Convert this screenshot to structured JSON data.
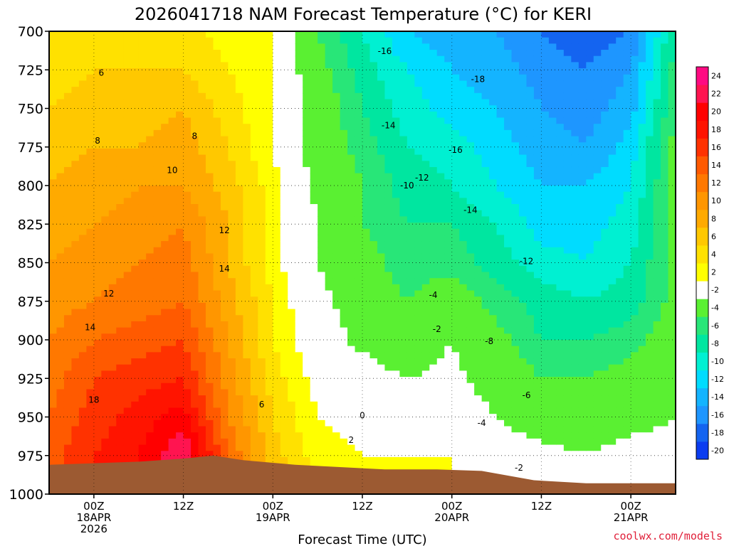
{
  "chart_data": {
    "type": "heatmap",
    "title": "2026041718 NAM Forecast Temperature (°C) for KERI",
    "xlabel": "Forecast Time (UTC)",
    "ylabel": "",
    "credit": "coolwx.com/models",
    "x_ticks": [
      {
        "hour": 6,
        "lines": [
          "00Z",
          "18APR",
          "2026"
        ]
      },
      {
        "hour": 18,
        "lines": [
          "12Z"
        ]
      },
      {
        "hour": 30,
        "lines": [
          "00Z",
          "19APR"
        ]
      },
      {
        "hour": 42,
        "lines": [
          "12Z"
        ]
      },
      {
        "hour": 54,
        "lines": [
          "00Z",
          "20APR"
        ]
      },
      {
        "hour": 66,
        "lines": [
          "12Z"
        ]
      },
      {
        "hour": 78,
        "lines": [
          "00Z",
          "21APR"
        ]
      }
    ],
    "xlim": [
      0,
      84
    ],
    "y_ticks": [
      700,
      725,
      750,
      775,
      800,
      825,
      850,
      875,
      900,
      925,
      950,
      975,
      1000
    ],
    "ylim": [
      1000,
      700
    ],
    "grid": true,
    "colorbar": {
      "placement": "right",
      "bins": [
        {
          "label": "-20",
          "color": "#0a3cf0"
        },
        {
          "label": "-18",
          "color": "#1464f0"
        },
        {
          "label": "-16",
          "color": "#1e96ff"
        },
        {
          "label": "-14",
          "color": "#14b4ff"
        },
        {
          "label": "-12",
          "color": "#00dcff"
        },
        {
          "label": "-10",
          "color": "#00f0d2"
        },
        {
          "label": "-8",
          "color": "#00e6a0"
        },
        {
          "label": "-6",
          "color": "#28e678"
        },
        {
          "label": "-4",
          "color": "#5af032"
        },
        {
          "label": "-2",
          "color": "#ffffff"
        },
        {
          "label": "2",
          "color": "#ffff00"
        },
        {
          "label": "4",
          "color": "#ffe100"
        },
        {
          "label": "6",
          "color": "#ffc800"
        },
        {
          "label": "8",
          "color": "#ffaa00"
        },
        {
          "label": "10",
          "color": "#ff9600"
        },
        {
          "label": "12",
          "color": "#ff7800"
        },
        {
          "label": "14",
          "color": "#ff5a00"
        },
        {
          "label": "16",
          "color": "#ff3200"
        },
        {
          "label": "18",
          "color": "#ff1400"
        },
        {
          "label": "20",
          "color": "#ff0000"
        },
        {
          "label": "22",
          "color": "#ff1450"
        },
        {
          "label": "24",
          "color": "#ff0a82"
        }
      ]
    },
    "terrain_color": "#9c5a32",
    "times": [
      0,
      6,
      12,
      18,
      24,
      30,
      36,
      42,
      48,
      54,
      60,
      66,
      72,
      78,
      84
    ],
    "levels": [
      700,
      725,
      750,
      775,
      800,
      825,
      850,
      875,
      900,
      925,
      950,
      975
    ],
    "temperature_grid": [
      [
        4,
        4,
        5,
        5,
        3,
        2,
        -6,
        -10,
        -14,
        -15,
        -16,
        -18,
        -19,
        -18,
        -8
      ],
      [
        5,
        6,
        6,
        6,
        4,
        2,
        -5,
        -9,
        -12,
        -14,
        -15,
        -17,
        -18,
        -16,
        -7
      ],
      [
        6,
        7,
        7,
        8,
        5,
        2,
        -4,
        -8,
        -11,
        -13,
        -14,
        -16,
        -17,
        -15,
        -6
      ],
      [
        7,
        8,
        8,
        9,
        6,
        2,
        -4,
        -7,
        -10,
        -11,
        -13,
        -15,
        -16,
        -13,
        -5
      ],
      [
        8,
        9,
        10,
        10,
        7,
        3,
        -3,
        -6,
        -9,
        -10,
        -12,
        -14,
        -14,
        -12,
        -5
      ],
      [
        9,
        10,
        11,
        12,
        8,
        3,
        -2,
        -6,
        -8,
        -8,
        -10,
        -13,
        -13,
        -11,
        -5
      ],
      [
        10,
        11,
        12,
        13,
        8,
        3,
        -2,
        -5,
        -7,
        -7,
        -9,
        -11,
        -12,
        -10,
        -5
      ],
      [
        11,
        12,
        13,
        14,
        9,
        4,
        -1,
        -4,
        -6,
        -4,
        -7,
        -9,
        -10,
        -9,
        -5
      ],
      [
        12,
        14,
        15,
        16,
        10,
        4,
        0,
        -3,
        -5,
        -2,
        -5,
        -8,
        -8,
        -7,
        -4
      ],
      [
        13,
        16,
        17,
        18,
        11,
        5,
        1,
        0,
        -2,
        -1,
        -4,
        -6,
        -6,
        -5,
        -3
      ],
      [
        14,
        17,
        19,
        21,
        12,
        6,
        2,
        1,
        0,
        1,
        -2,
        -4,
        -4,
        -3,
        -2
      ],
      [
        15,
        18,
        20,
        24,
        14,
        7,
        3,
        2,
        2,
        2,
        0,
        -1,
        -2,
        -1,
        -1
      ]
    ],
    "contour_labels": [
      {
        "text": "6",
        "hour": 7,
        "level": 727
      },
      {
        "text": "8",
        "hour": 6.5,
        "level": 771
      },
      {
        "text": "8",
        "hour": 19.5,
        "level": 768
      },
      {
        "text": "10",
        "hour": 16.5,
        "level": 790
      },
      {
        "text": "12",
        "hour": 23.5,
        "level": 829
      },
      {
        "text": "14",
        "hour": 23.5,
        "level": 854
      },
      {
        "text": "12",
        "hour": 8,
        "level": 870
      },
      {
        "text": "14",
        "hour": 5.5,
        "level": 892
      },
      {
        "text": "18",
        "hour": 6,
        "level": 939
      },
      {
        "text": "6",
        "hour": 28.5,
        "level": 942
      },
      {
        "text": "0",
        "hour": 42,
        "level": 949
      },
      {
        "text": "2",
        "hour": 40.5,
        "level": 965
      },
      {
        "text": "-2",
        "hour": 52,
        "level": 893
      },
      {
        "text": "-4",
        "hour": 51.5,
        "level": 871
      },
      {
        "text": "-16",
        "hour": 45,
        "level": 713
      },
      {
        "text": "-18",
        "hour": 57.5,
        "level": 731
      },
      {
        "text": "-14",
        "hour": 45.5,
        "level": 761
      },
      {
        "text": "-16",
        "hour": 54.5,
        "level": 777
      },
      {
        "text": "-12",
        "hour": 50,
        "level": 795
      },
      {
        "text": "-10",
        "hour": 48,
        "level": 800
      },
      {
        "text": "-14",
        "hour": 56.5,
        "level": 816
      },
      {
        "text": "-12",
        "hour": 64,
        "level": 849
      },
      {
        "text": "-8",
        "hour": 59,
        "level": 901
      },
      {
        "text": "-6",
        "hour": 64,
        "level": 936
      },
      {
        "text": "-4",
        "hour": 58,
        "level": 954
      },
      {
        "text": "-2",
        "hour": 63,
        "level": 983
      }
    ],
    "surface_pressure": [
      {
        "hour": 0,
        "level": 981
      },
      {
        "hour": 12,
        "level": 979
      },
      {
        "hour": 18,
        "level": 977
      },
      {
        "hour": 22,
        "level": 975
      },
      {
        "hour": 26,
        "level": 978
      },
      {
        "hour": 33,
        "level": 981
      },
      {
        "hour": 45,
        "level": 984
      },
      {
        "hour": 52,
        "level": 984
      },
      {
        "hour": 58,
        "level": 985
      },
      {
        "hour": 65,
        "level": 991
      },
      {
        "hour": 72,
        "level": 993
      },
      {
        "hour": 78,
        "level": 993
      },
      {
        "hour": 84,
        "level": 993
      }
    ]
  }
}
